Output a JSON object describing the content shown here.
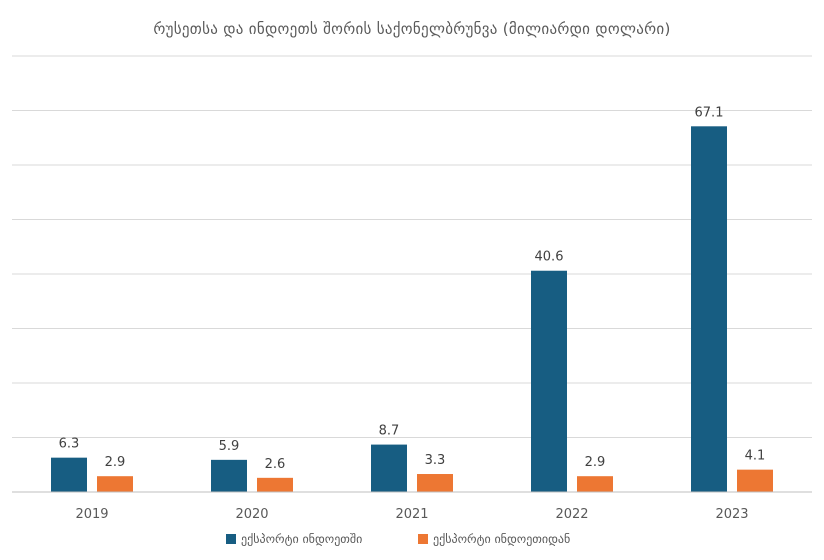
{
  "chart_data": {
    "type": "bar",
    "title": "რუსეთსა და ინდოეთს შორის საქონელბრუნვა (მილიარდი დოლარი)",
    "categories": [
      "2019",
      "2020",
      "2021",
      "2022",
      "2023"
    ],
    "series": [
      {
        "name": "ექსპორტი ინდოეთში",
        "color": "#175d82",
        "values": [
          6.3,
          5.9,
          8.7,
          40.6,
          67.1
        ]
      },
      {
        "name": "ექსპორტი ინდოეთიდან",
        "color": "#ed7733",
        "values": [
          2.9,
          2.6,
          3.3,
          2.9,
          4.1
        ]
      }
    ],
    "ylim": [
      0,
      80
    ],
    "grid": true,
    "legend": "bottom"
  }
}
